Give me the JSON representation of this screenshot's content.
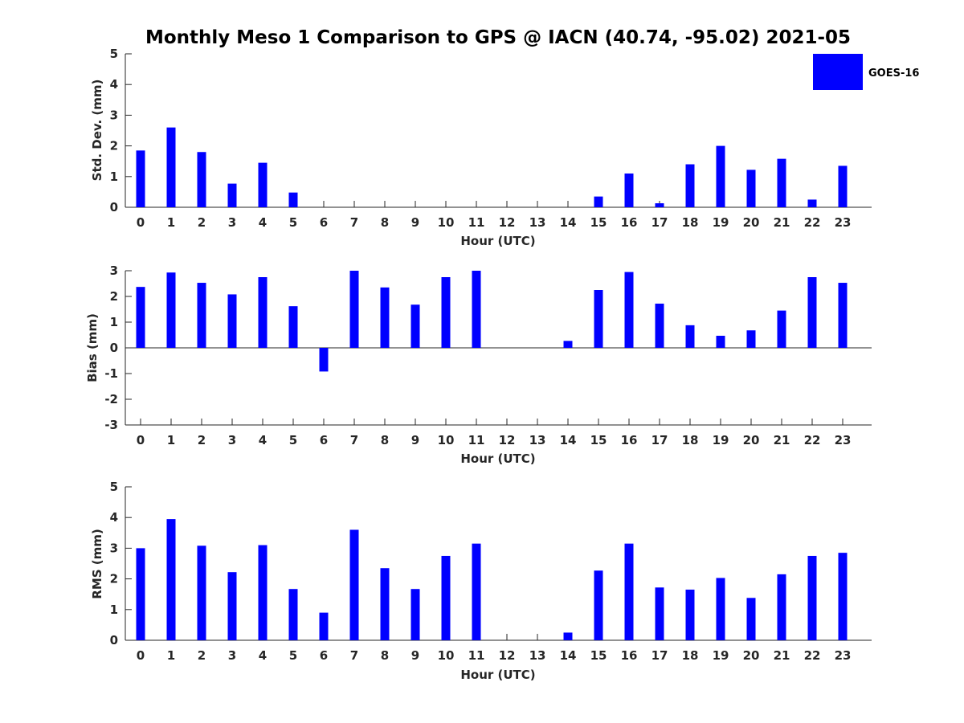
{
  "title": "Monthly Meso 1 Comparison to GPS @ IACN (40.74, -95.02) 2021-05",
  "legend": {
    "label": "GOES-16",
    "color": "#0000ff"
  },
  "chart_data": [
    {
      "type": "bar",
      "name": "std-dev",
      "title": "",
      "xlabel": "Hour (UTC)",
      "ylabel": "Std. Dev. (mm)",
      "categories": [
        "0",
        "1",
        "2",
        "3",
        "4",
        "5",
        "6",
        "7",
        "8",
        "9",
        "10",
        "11",
        "12",
        "13",
        "14",
        "15",
        "16",
        "17",
        "18",
        "19",
        "20",
        "21",
        "22",
        "23"
      ],
      "ylim": [
        0,
        5
      ],
      "yticks": [
        "0",
        "1",
        "2",
        "3",
        "4",
        "5"
      ],
      "series": [
        {
          "name": "GOES-16",
          "values": [
            1.85,
            2.6,
            1.8,
            0.77,
            1.45,
            0.48,
            0,
            0,
            0,
            0,
            0,
            0,
            0,
            0,
            0,
            0.35,
            1.1,
            0.13,
            1.4,
            2.0,
            1.22,
            1.58,
            0.25,
            1.35
          ]
        }
      ]
    },
    {
      "type": "bar",
      "name": "bias",
      "title": "",
      "xlabel": "Hour (UTC)",
      "ylabel": "Bias (mm)",
      "categories": [
        "0",
        "1",
        "2",
        "3",
        "4",
        "5",
        "6",
        "7",
        "8",
        "9",
        "10",
        "11",
        "12",
        "13",
        "14",
        "15",
        "16",
        "17",
        "18",
        "19",
        "20",
        "21",
        "22",
        "23"
      ],
      "ylim": [
        -3,
        3
      ],
      "yticks": [
        "-3",
        "-2",
        "-1",
        "0",
        "1",
        "2",
        "3"
      ],
      "series": [
        {
          "name": "GOES-16",
          "values": [
            2.37,
            2.93,
            2.53,
            2.08,
            2.75,
            1.62,
            -0.92,
            3.0,
            2.35,
            1.68,
            2.75,
            3.0,
            0,
            0,
            0.27,
            2.25,
            2.95,
            1.72,
            0.88,
            0.47,
            0.68,
            1.45,
            2.75,
            2.53
          ]
        }
      ]
    },
    {
      "type": "bar",
      "name": "rms",
      "title": "",
      "xlabel": "Hour (UTC)",
      "ylabel": "RMS (mm)",
      "categories": [
        "0",
        "1",
        "2",
        "3",
        "4",
        "5",
        "6",
        "7",
        "8",
        "9",
        "10",
        "11",
        "12",
        "13",
        "14",
        "15",
        "16",
        "17",
        "18",
        "19",
        "20",
        "21",
        "22",
        "23"
      ],
      "ylim": [
        0,
        5
      ],
      "yticks": [
        "0",
        "1",
        "2",
        "3",
        "4",
        "5"
      ],
      "series": [
        {
          "name": "GOES-16",
          "values": [
            3.0,
            3.95,
            3.08,
            2.22,
            3.1,
            1.67,
            0.9,
            3.6,
            2.35,
            1.67,
            2.75,
            3.15,
            0,
            0,
            0.25,
            2.27,
            3.15,
            1.72,
            1.65,
            2.03,
            1.38,
            2.15,
            2.75,
            2.85
          ]
        }
      ]
    }
  ]
}
